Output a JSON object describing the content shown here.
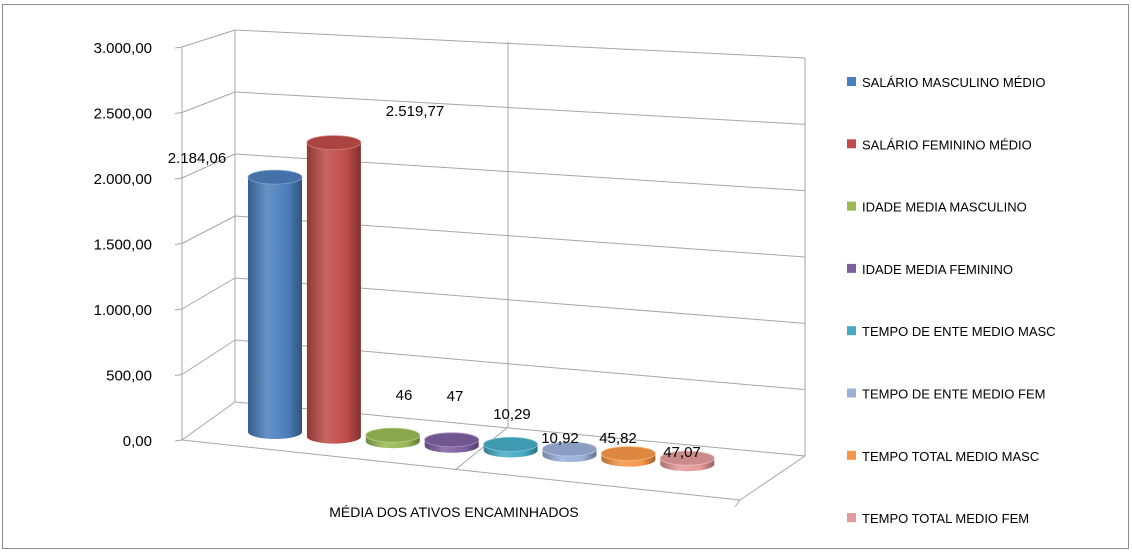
{
  "chart_data": {
    "type": "bar",
    "title": "",
    "xlabel": "",
    "ylabel": "",
    "categories": [
      "MÉDIA DOS ATIVOS ENCAMINHADOS"
    ],
    "ylim": [
      0,
      3000
    ],
    "yticks": [
      "0,00",
      "500,00",
      "1.000,00",
      "1.500,00",
      "2.000,00",
      "2.500,00",
      "3.000,00"
    ],
    "grid": true,
    "legend_position": "right",
    "series": [
      {
        "name": "SALÁRIO MASCULINO MÉDIO",
        "values": [
          2184.06
        ],
        "label": "2.184,06",
        "color": "#4a7ebb"
      },
      {
        "name": "SALÁRIO FEMININO MÉDIO",
        "values": [
          2519.77
        ],
        "label": "2.519,77",
        "color": "#be4b48"
      },
      {
        "name": "IDADE MEDIA MASCULINO",
        "values": [
          46
        ],
        "label": "46",
        "color": "#98b954"
      },
      {
        "name": "IDADE MEDIA FEMININO",
        "values": [
          47
        ],
        "label": "47",
        "color": "#7d60a0"
      },
      {
        "name": "TEMPO DE ENTE MEDIO MASC",
        "values": [
          10.29
        ],
        "label": "10,29",
        "color": "#46aac5"
      },
      {
        "name": "TEMPO DE ENTE MEDIO FEM",
        "values": [
          10.92
        ],
        "label": "10,92",
        "color": "#9ab0d8"
      },
      {
        "name": "TEMPO TOTAL MEDIO MASC",
        "values": [
          45.82
        ],
        "label": "45,82",
        "color": "#f59646"
      },
      {
        "name": "TEMPO TOTAL MEDIO FEM",
        "values": [
          47.07
        ],
        "label": "47,07",
        "color": "#e29a99"
      }
    ]
  }
}
